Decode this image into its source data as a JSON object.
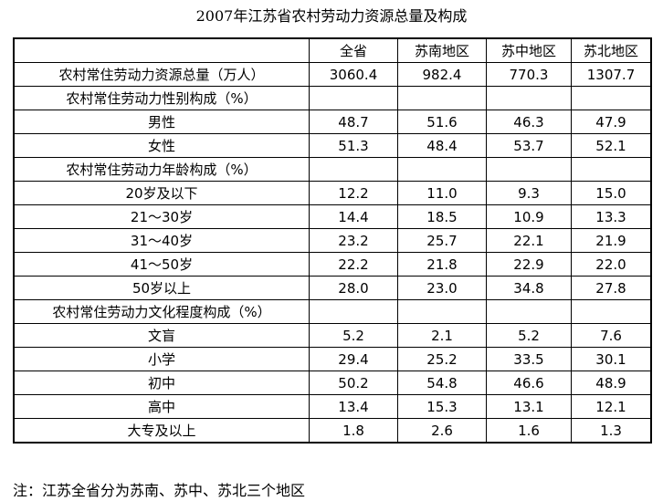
{
  "title": "2007年江苏省农村劳动力资源总量及构成",
  "table": {
    "header": [
      "全省",
      "苏南地区",
      "苏中地区",
      "苏北地区"
    ],
    "rows": [
      {
        "label": "农村常住劳动力资源总量（万人）",
        "cells": [
          "3060.4",
          "982.4",
          "770.3",
          "1307.7"
        ]
      },
      {
        "label": "农村常住劳动力性别构成（%）"
      },
      {
        "label": "男性",
        "cells": [
          "48.7",
          "51.6",
          "46.3",
          "47.9"
        ]
      },
      {
        "label": "女性",
        "cells": [
          "51.3",
          "48.4",
          "53.7",
          "52.1"
        ]
      },
      {
        "label": "农村常住劳动力年龄构成（%）"
      },
      {
        "label": "20岁及以下",
        "cells": [
          "12.2",
          "11.0",
          "9.3",
          "15.0"
        ]
      },
      {
        "label": "21～30岁",
        "cells": [
          "14.4",
          "18.5",
          "10.9",
          "13.3"
        ]
      },
      {
        "label": "31～40岁",
        "cells": [
          "23.2",
          "25.7",
          "22.1",
          "21.9"
        ]
      },
      {
        "label": "41～50岁",
        "cells": [
          "22.2",
          "21.8",
          "22.9",
          "22.0"
        ]
      },
      {
        "label": "50岁以上",
        "cells": [
          "28.0",
          "23.0",
          "34.8",
          "27.8"
        ]
      },
      {
        "label": "农村常住劳动力文化程度构成（%）"
      },
      {
        "label": "文盲",
        "cells": [
          "5.2",
          "2.1",
          "5.2",
          "7.6"
        ]
      },
      {
        "label": "小学",
        "cells": [
          "29.4",
          "25.2",
          "33.5",
          "30.1"
        ]
      },
      {
        "label": "初中",
        "cells": [
          "50.2",
          "54.8",
          "46.6",
          "48.9"
        ]
      },
      {
        "label": "高中",
        "cells": [
          "13.4",
          "15.3",
          "13.1",
          "12.1"
        ]
      },
      {
        "label": "大专及以上",
        "cells": [
          "1.8",
          "2.6",
          "1.6",
          "1.3"
        ]
      }
    ]
  },
  "note": "注：江苏全省分为苏南、苏中、苏北三个地区"
}
